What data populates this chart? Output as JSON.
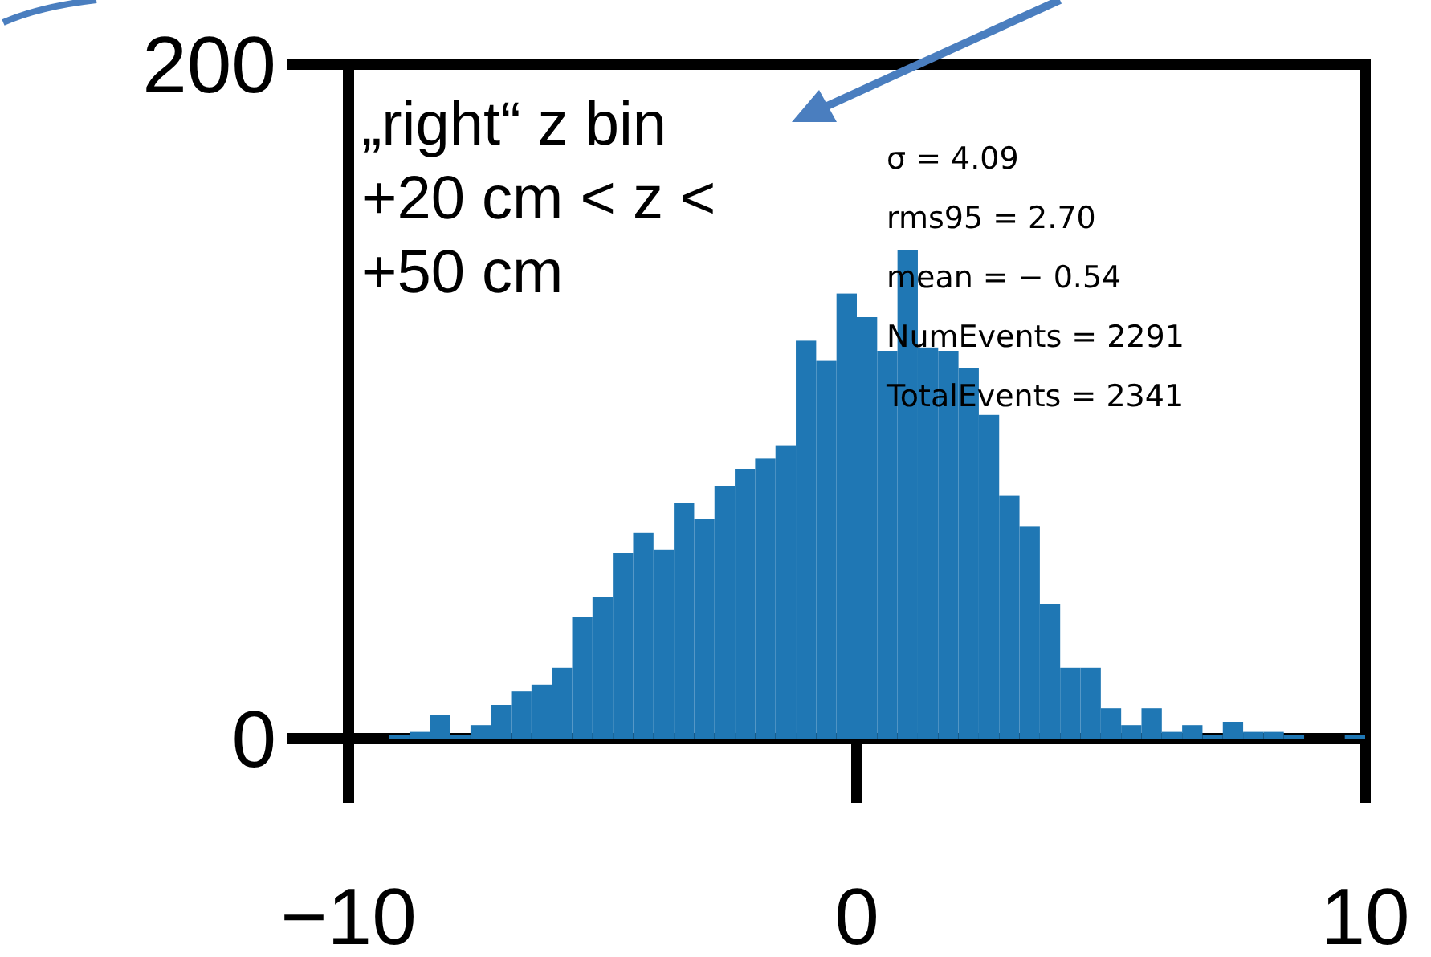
{
  "chart_data": {
    "type": "histogram",
    "title": "„right“ z bin +20 cm < z < +50 cm",
    "annotations": [
      "σ = 4.09",
      "rms95 = 2.70",
      "mean = − 0.54",
      "NumEvents = 2291",
      "TotalEvents = 2341"
    ],
    "bins": [
      -10,
      -9.6,
      -9.2,
      -8.8,
      -8.4,
      -8,
      -7.6,
      -7.2,
      -6.8,
      -6.4,
      -6,
      -5.6,
      -5.2,
      -4.8,
      -4.4,
      -4,
      -3.6,
      -3.2,
      -2.8,
      -2.4,
      -2,
      -1.6,
      -1.2,
      -0.8,
      -0.4,
      0,
      0.4,
      0.8,
      1.2,
      1.6,
      2,
      2.4,
      2.8,
      3.2,
      3.6,
      4,
      4.4,
      4.8,
      5.2,
      5.6,
      6,
      6.4,
      6.8,
      7.2,
      7.6,
      8,
      8.4,
      8.8,
      9.2,
      9.6,
      10
    ],
    "values": [
      0,
      0,
      1,
      2,
      7,
      1,
      4,
      10,
      14,
      16,
      21,
      36,
      42,
      55,
      61,
      56,
      70,
      65,
      75,
      80,
      83,
      87,
      118,
      112,
      132,
      125,
      115,
      145,
      116,
      115,
      110,
      96,
      72,
      63,
      40,
      21,
      21,
      9,
      4,
      9,
      2,
      4,
      1,
      5,
      2,
      2,
      1,
      0,
      0,
      1
    ],
    "color": "#1f77b4",
    "xlim": [
      -10,
      10
    ],
    "xticks": [
      {
        "value": -10,
        "label": "−10"
      },
      0,
      10
    ],
    "ylim": [
      0,
      200
    ],
    "yticks": [
      0,
      200
    ]
  }
}
